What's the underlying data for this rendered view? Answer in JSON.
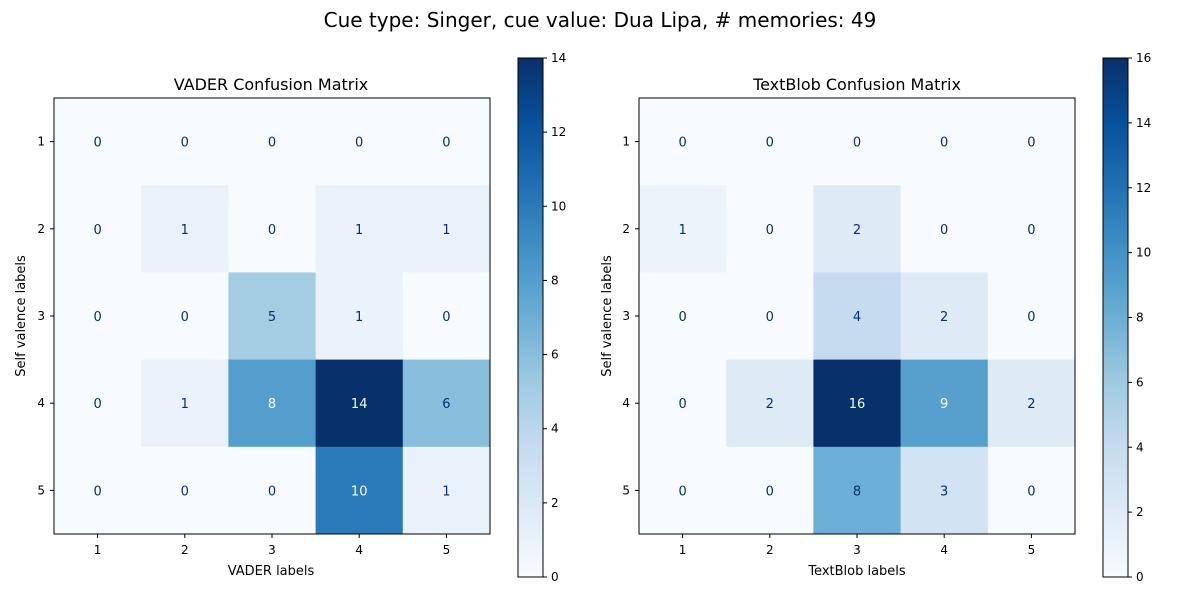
{
  "figure": {
    "suptitle": "Cue type: Singer, cue value: Dua Lipa, # memories: 49"
  },
  "colormap": {
    "name": "Blues",
    "stops": [
      "#f7fbff",
      "#deebf7",
      "#c6dbef",
      "#9ecae1",
      "#6baed6",
      "#4292c6",
      "#2171b5",
      "#08519c",
      "#08306b"
    ],
    "dark_text": "#08306b",
    "light_text": "#f7fbff"
  },
  "chart_data": [
    {
      "type": "heatmap",
      "title": "VADER Confusion Matrix",
      "xlabel": "VADER labels",
      "ylabel": "Self valence labels",
      "x_categories": [
        "1",
        "2",
        "3",
        "4",
        "5"
      ],
      "y_categories": [
        "1",
        "2",
        "3",
        "4",
        "5"
      ],
      "matrix": [
        [
          0,
          0,
          0,
          0,
          0
        ],
        [
          0,
          1,
          0,
          1,
          1
        ],
        [
          0,
          0,
          5,
          1,
          0
        ],
        [
          0,
          1,
          8,
          14,
          6
        ],
        [
          0,
          0,
          0,
          10,
          1
        ]
      ],
      "colorbar": {
        "min": 0,
        "max": 14,
        "ticks": [
          0,
          2,
          4,
          6,
          8,
          10,
          12,
          14
        ]
      }
    },
    {
      "type": "heatmap",
      "title": "TextBlob Confusion Matrix",
      "xlabel": "TextBlob labels",
      "ylabel": "Self valence labels",
      "x_categories": [
        "1",
        "2",
        "3",
        "4",
        "5"
      ],
      "y_categories": [
        "1",
        "2",
        "3",
        "4",
        "5"
      ],
      "matrix": [
        [
          0,
          0,
          0,
          0,
          0
        ],
        [
          1,
          0,
          2,
          0,
          0
        ],
        [
          0,
          0,
          4,
          2,
          0
        ],
        [
          0,
          2,
          16,
          9,
          2
        ],
        [
          0,
          0,
          8,
          3,
          0
        ]
      ],
      "colorbar": {
        "min": 0,
        "max": 16,
        "ticks": [
          0,
          2,
          4,
          6,
          8,
          10,
          12,
          14,
          16
        ]
      }
    }
  ]
}
